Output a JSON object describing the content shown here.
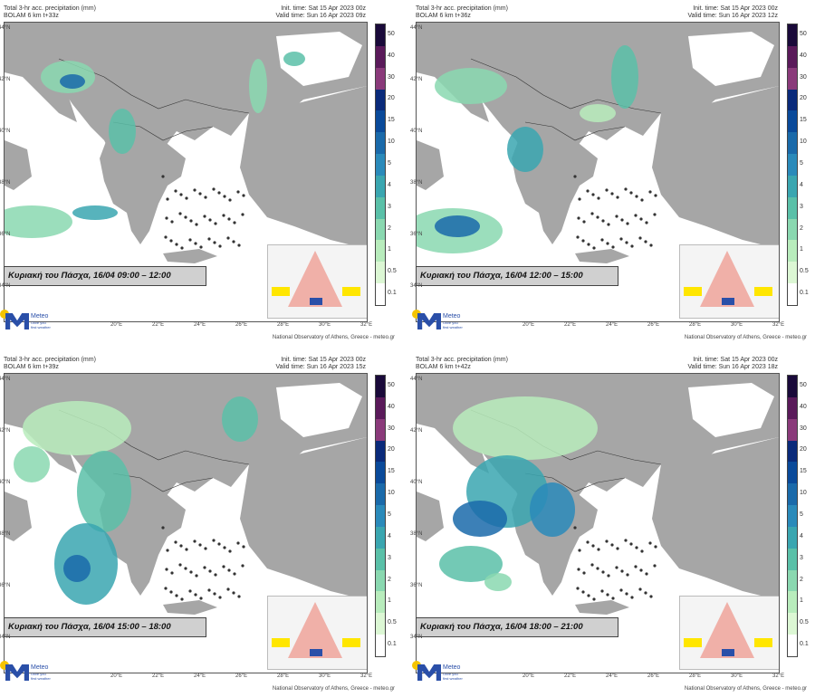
{
  "panels": [
    {
      "title_line1": "Total 3-hr acc. precipitation (mm)",
      "title_line2": "BOLAM 6 km t+33z",
      "init_time": "Init. time: Sat 15 Apr 2023 00z",
      "valid_time": "Valid time: Sun 16 Apr 2023 09z",
      "caption": "Κυριακή του Πάσχα, 16/04 09:00 – 12:00"
    },
    {
      "title_line1": "Total 3-hr acc. precipitation (mm)",
      "title_line2": "BOLAM 6 km t+36z",
      "init_time": "Init. time: Sat 15 Apr 2023 00z",
      "valid_time": "Valid time: Sun 16 Apr 2023 12z",
      "caption": "Κυριακή του Πάσχα, 16/04 12:00 – 15:00"
    },
    {
      "title_line1": "Total 3-hr acc. precipitation (mm)",
      "title_line2": "BOLAM 6 km t+39z",
      "init_time": "Init. time: Sat 15 Apr 2023 00z",
      "valid_time": "Valid time: Sun 16 Apr 2023 15z",
      "caption": "Κυριακή του Πάσχα, 16/04 15:00 – 18:00"
    },
    {
      "title_line1": "Total 3-hr acc. precipitation (mm)",
      "title_line2": "BOLAM 6 km t+42z",
      "init_time": "Init. time: Sat 15 Apr 2023 00z",
      "valid_time": "Valid time: Sun 16 Apr 2023 18z",
      "caption": "Κυριακή του Πάσχα, 16/04 18:00 – 21:00"
    }
  ],
  "legend": {
    "labels": [
      "50",
      "40",
      "30",
      "20",
      "15",
      "10",
      "5",
      "4",
      "3",
      "2",
      "1",
      "0.5",
      "0.1"
    ],
    "colors": [
      "#1a0a3a",
      "#5a1a5a",
      "#8a3a7a",
      "#0a2a7a",
      "#0a4a9a",
      "#1a6aaa",
      "#2a8aba",
      "#3aa6b0",
      "#5ac0a8",
      "#8ad8b0",
      "#b8ecbc",
      "#dcf7d4",
      "#ffffff"
    ]
  },
  "lat_labels": [
    "44°N",
    "42°N",
    "40°N",
    "38°N",
    "36°N",
    "34°N"
  ],
  "lon_labels": [
    "20°E",
    "22°E",
    "24°E",
    "26°E",
    "28°E",
    "30°E",
    "32°E"
  ],
  "logo": {
    "name": "Meteo",
    "sub1": "Olive you",
    "sub2": "first weather"
  },
  "credit": "National Observatory of Athens, Greece - meteo.gr",
  "colors": {
    "land": "#a6a6a6",
    "sea": "#ffffff",
    "border": "#333333"
  }
}
